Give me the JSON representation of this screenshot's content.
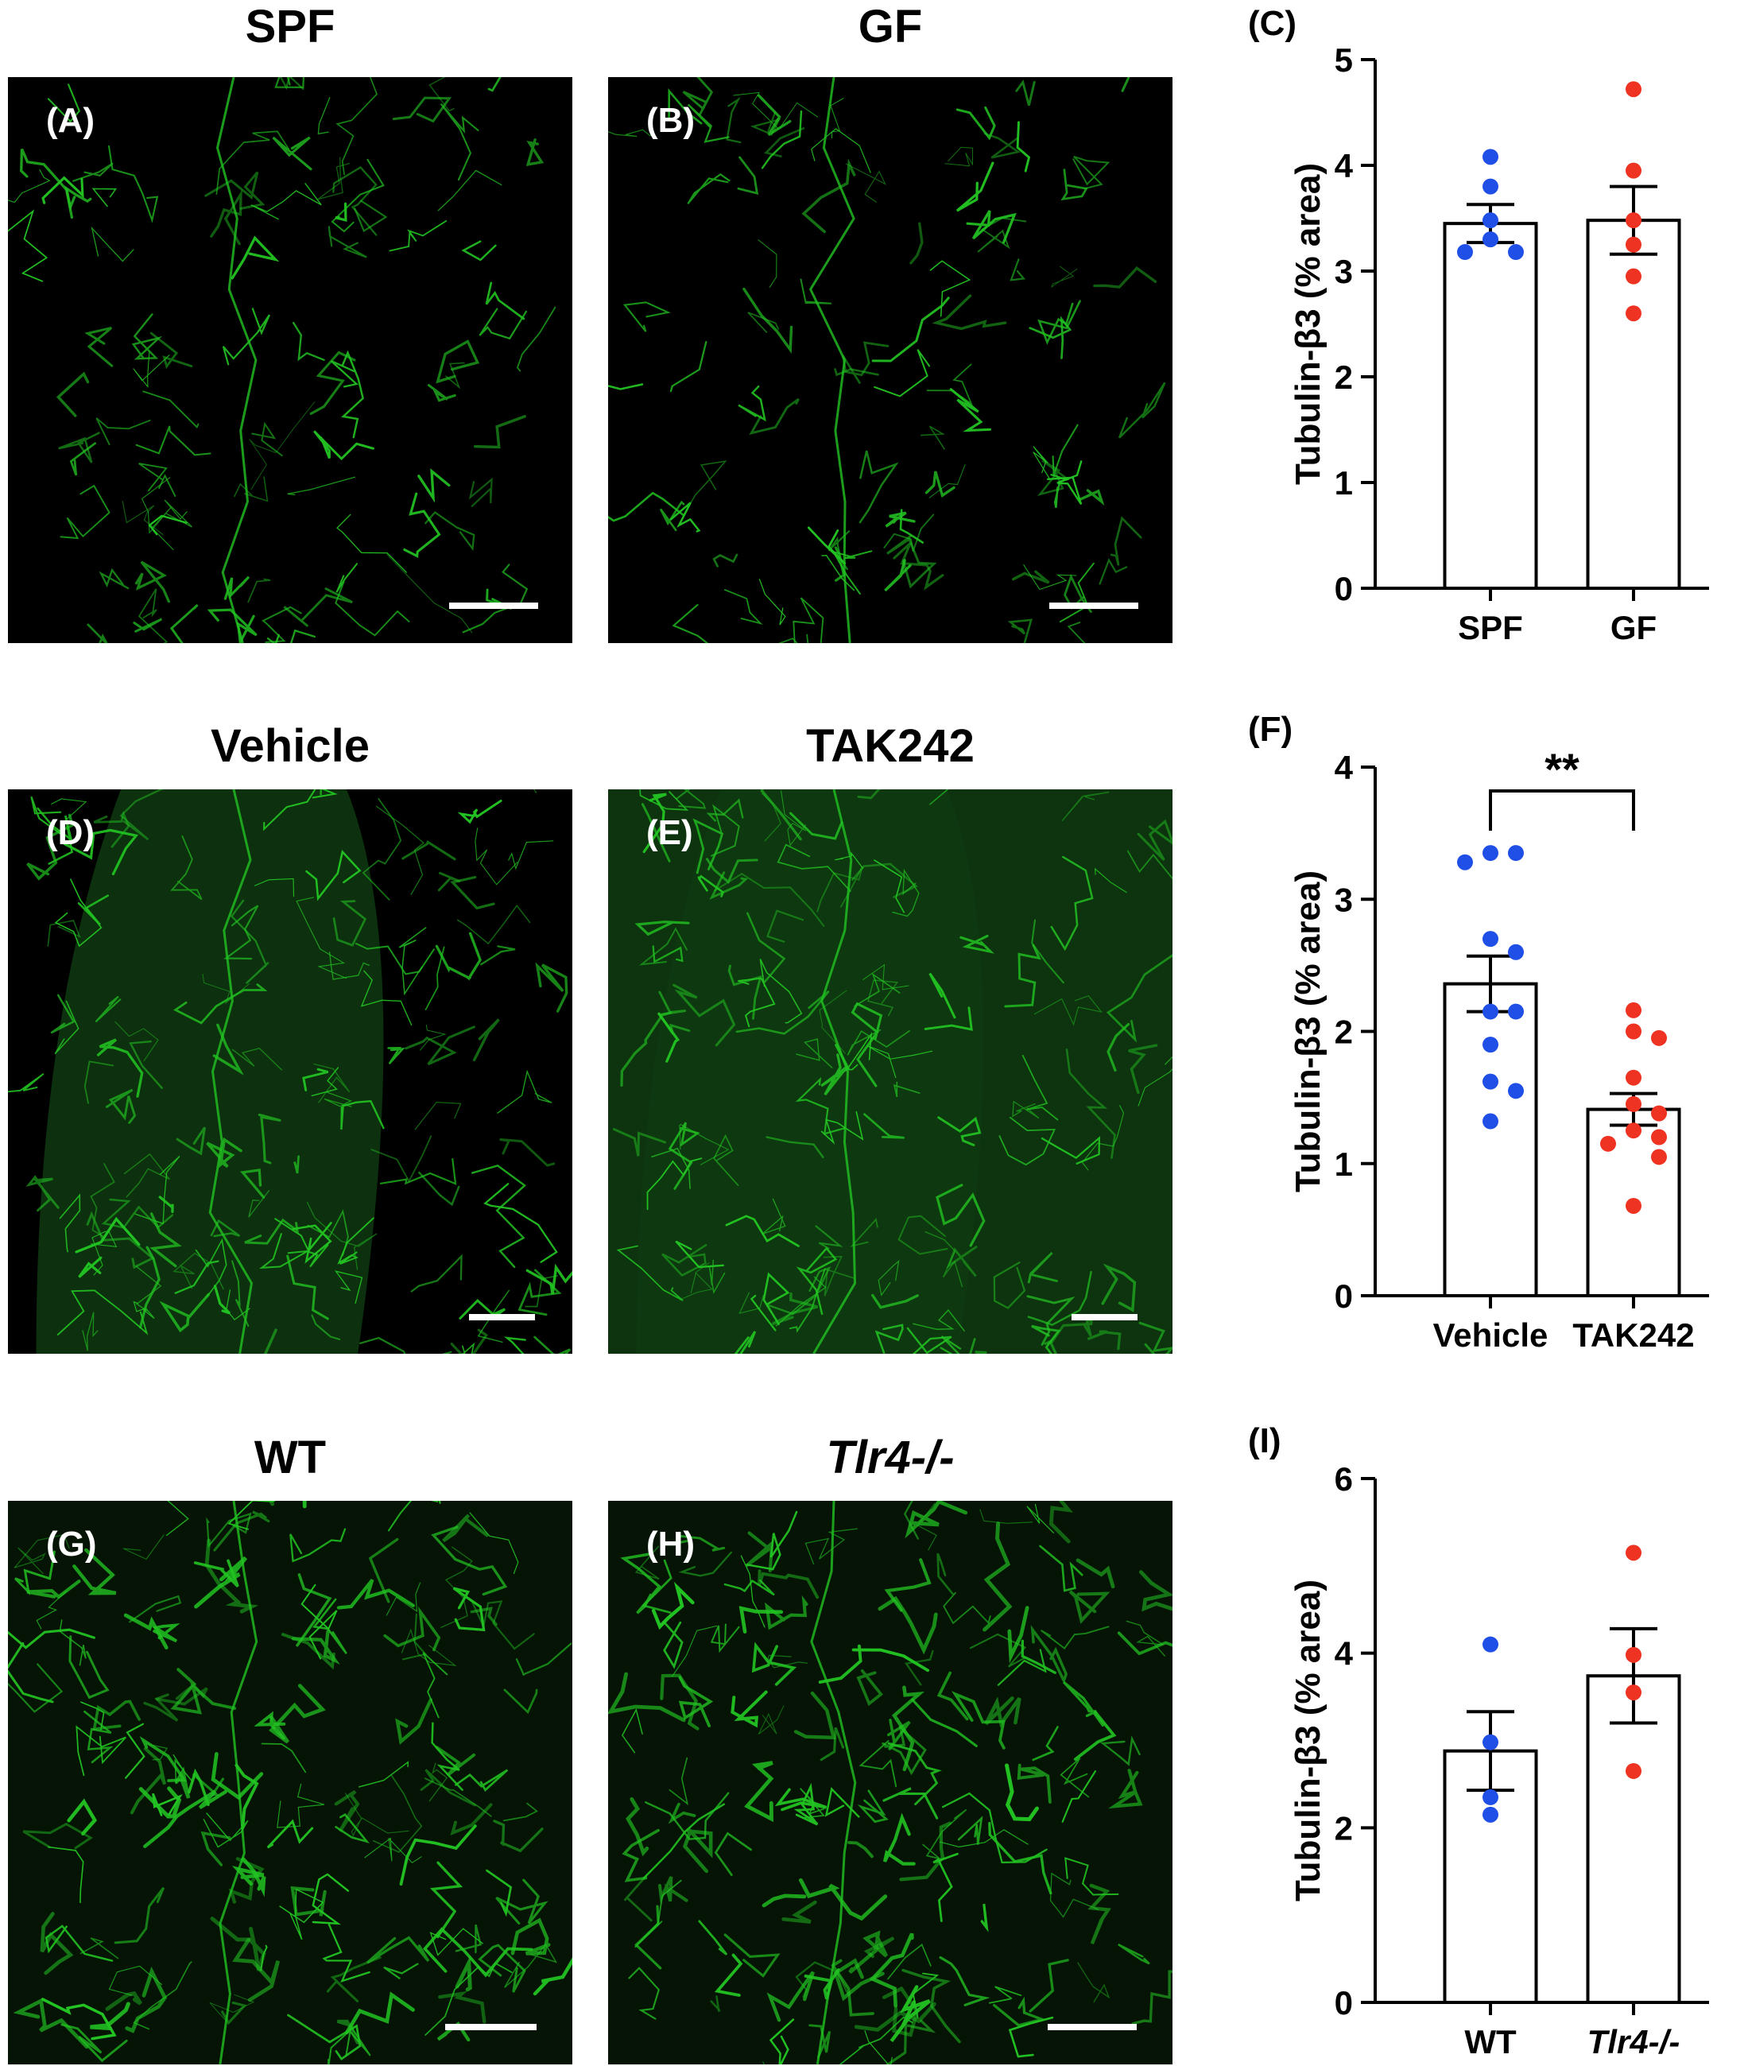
{
  "rows": [
    {
      "titles": [
        "SPF",
        "GF"
      ],
      "titles_italic": [
        false,
        false
      ],
      "panel_labels": [
        "(A)",
        "(B)"
      ],
      "chart_label": "(C)"
    },
    {
      "titles": [
        "Vehicle",
        "TAK242"
      ],
      "titles_italic": [
        false,
        false
      ],
      "panel_labels": [
        "(D)",
        "(E)"
      ],
      "chart_label": "(F)"
    },
    {
      "titles": [
        "WT",
        "Tlr4-/-"
      ],
      "titles_italic": [
        false,
        true
      ],
      "panel_labels": [
        "(G)",
        "(H)"
      ],
      "chart_label": "(I)"
    }
  ],
  "colors": {
    "fluorescence": "#22c322",
    "group1_dots": "#1f4fe6",
    "group2_dots": "#ee3322"
  },
  "chart_data": [
    {
      "type": "bar",
      "categories": [
        "SPF",
        "GF"
      ],
      "ylabel": "Tubulin-β3 (% area)",
      "ylim": [
        0,
        5
      ],
      "yticks": [
        0,
        1,
        2,
        3,
        4,
        5
      ],
      "means": [
        3.45,
        3.48
      ],
      "sem": [
        0.18,
        0.32
      ],
      "points": [
        [
          4.08,
          3.8,
          3.48,
          3.3,
          3.18,
          3.18
        ],
        [
          4.72,
          3.95,
          3.48,
          3.25,
          2.95,
          2.6
        ]
      ],
      "significance": ""
    },
    {
      "type": "bar",
      "categories": [
        "Vehicle",
        "TAK242"
      ],
      "ylabel": "Tubulin-β3 (% area)",
      "ylim": [
        0,
        4
      ],
      "yticks": [
        0,
        1,
        2,
        3,
        4
      ],
      "means": [
        2.36,
        1.41
      ],
      "sem": [
        0.21,
        0.12
      ],
      "points": [
        [
          3.35,
          3.35,
          3.28,
          2.7,
          2.6,
          2.15,
          2.15,
          1.9,
          1.62,
          1.55,
          1.32
        ],
        [
          2.16,
          2.0,
          1.95,
          1.65,
          1.45,
          1.38,
          1.25,
          1.2,
          1.15,
          1.05,
          0.68
        ]
      ],
      "significance": "**"
    },
    {
      "type": "bar",
      "categories": [
        "WT",
        "Tlr4-/-"
      ],
      "ylabel": "Tubulin-β3 (% area)",
      "ylim": [
        0,
        6
      ],
      "yticks": [
        0,
        2,
        4,
        6
      ],
      "means": [
        2.88,
        3.74
      ],
      "sem": [
        0.45,
        0.54
      ],
      "points": [
        [
          4.1,
          2.98,
          2.35,
          2.15
        ],
        [
          5.15,
          3.98,
          3.55,
          2.65
        ]
      ],
      "significance": ""
    }
  ]
}
